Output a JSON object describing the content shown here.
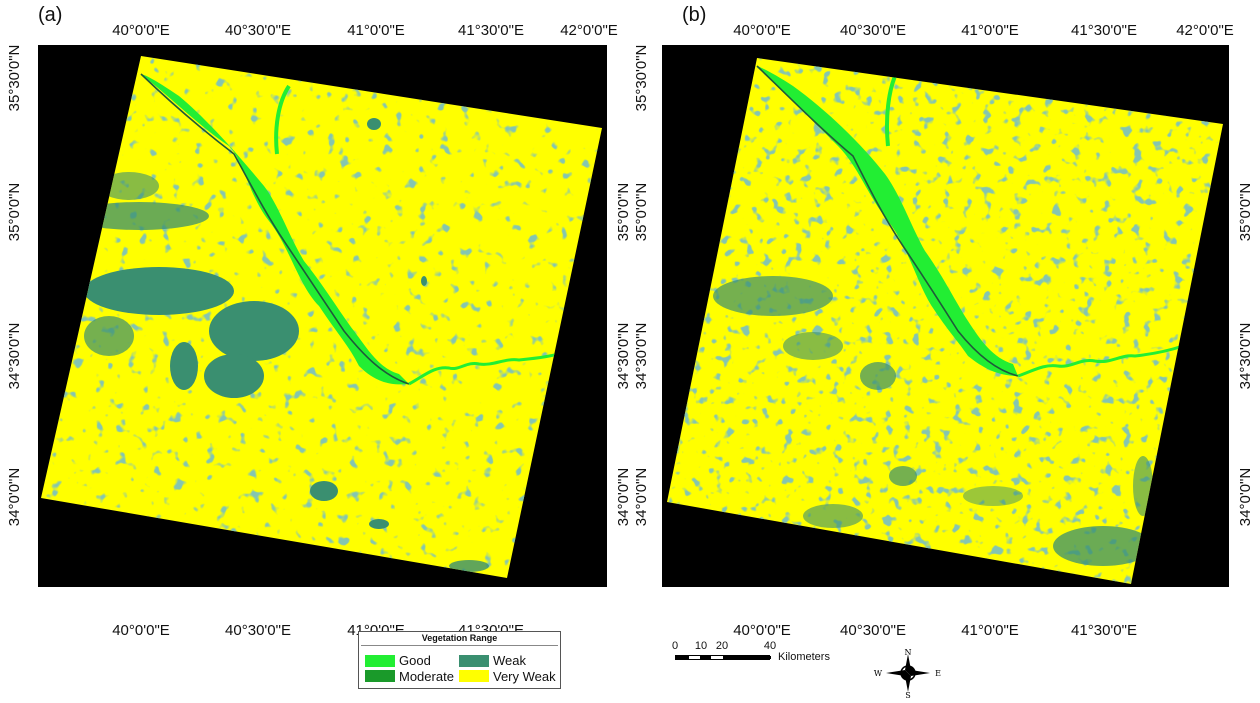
{
  "panels": [
    {
      "label": "(a)",
      "top_ticks": [
        "40°0'0\"E",
        "40°30'0\"E",
        "41°0'0\"E",
        "41°30'0\"E",
        "42°0'0\"E"
      ],
      "bottom_ticks": [
        "40°0'0\"E",
        "40°30'0\"E",
        "41°0'0\"E",
        "41°30'0\"E"
      ],
      "left_ticks": [
        "35°30'0\"N",
        "35°0'0\"N",
        "34°30'0\"N",
        "34°0'0\"N"
      ],
      "right_ticks": [
        "35°0'0\"N",
        "34°30'0\"N",
        "34°0'0\"N"
      ]
    },
    {
      "label": "(b)",
      "top_ticks": [
        "40°0'0\"E",
        "40°30'0\"E",
        "41°0'0\"E",
        "41°30'0\"E",
        "42°0'0\"E"
      ],
      "bottom_ticks": [
        "40°0'0\"E",
        "40°30'0\"E",
        "41°0'0\"E",
        "41°30'0\"E"
      ],
      "left_ticks": [
        "35°30'0\"N",
        "35°0'0\"N",
        "34°30'0\"N",
        "34°0'0\"N"
      ],
      "right_ticks": [
        "35°0'0\"N",
        "34°30'0\"N",
        "34°0'0\"N"
      ]
    }
  ],
  "legend": {
    "title": "Vegetation Range",
    "items": [
      {
        "label": "Good",
        "color": "#22ee33"
      },
      {
        "label": "Weak",
        "color": "#3a8f70"
      },
      {
        "label": "Moderate",
        "color": "#1a9a2a"
      },
      {
        "label": "Very Weak",
        "color": "#ffff00"
      }
    ]
  },
  "scale": {
    "labels": [
      "0",
      "10",
      "20",
      "40"
    ],
    "unit": "Kilometers"
  },
  "compass": {
    "n": "N",
    "s": "S",
    "e": "E",
    "w": "W"
  },
  "colors": {
    "background": "#000000",
    "very_weak": "#ffff00",
    "weak": "#3a8f70",
    "good": "#22ee33",
    "moderate": "#1a9a2a",
    "river": "#1f5a3a"
  }
}
